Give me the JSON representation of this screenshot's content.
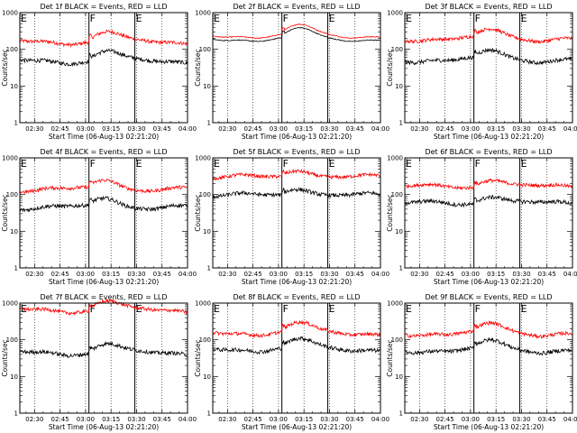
{
  "chart_data": {
    "type": "line",
    "scale": "log",
    "colors": {
      "events": "#000000",
      "lld": "#ff0000"
    },
    "ylabel": "Counts/sec",
    "xlabel": "Start Time (06-Aug-13 02:21:20)",
    "xlim_minutes": [
      21.33,
      120
    ],
    "ylim": [
      1,
      1000
    ],
    "x_ticks": [
      "02:30",
      "02:45",
      "03:00",
      "03:15",
      "03:30",
      "03:45",
      "04:00"
    ],
    "y_ticks": [
      "1",
      "10",
      "100",
      "1000"
    ],
    "markers": [
      {
        "label": "E",
        "at_minute": 21.33
      },
      {
        "label": "F",
        "at_minute": 62
      },
      {
        "label": "E",
        "at_minute": 89
      }
    ],
    "panels": [
      {
        "title": "Det 1f BLACK = Events, RED = LLD",
        "events_level": 48,
        "lld_level": 160,
        "bump": 1.9
      },
      {
        "title": "Det 2f BLACK = Events, RED = LLD",
        "events_level": 190,
        "lld_level": 235,
        "bump": 1.9
      },
      {
        "title": "Det 3f BLACK = Events, RED = LLD",
        "events_level": 52,
        "lld_level": 195,
        "bump": 1.75
      },
      {
        "title": "Det 4f BLACK = Events, RED = LLD",
        "events_level": 45,
        "lld_level": 140,
        "bump": 1.85
      },
      {
        "title": "Det 5f BLACK = Events, RED = LLD",
        "events_level": 95,
        "lld_level": 300,
        "bump": 1.7
      },
      {
        "title": "Det 6f BLACK = Events, RED = LLD",
        "events_level": 58,
        "lld_level": 165,
        "bump": 1.7
      },
      {
        "title": "Det 7f BLACK = Events, RED = LLD",
        "events_level": 44,
        "lld_level": 640,
        "bump": 1.85
      },
      {
        "title": "Det 8f BLACK = Events, RED = LLD",
        "events_level": 56,
        "lld_level": 155,
        "bump": 1.85
      },
      {
        "title": "Det 9f BLACK = Events, RED = LLD",
        "events_level": 52,
        "lld_level": 150,
        "bump": 1.8
      }
    ]
  }
}
